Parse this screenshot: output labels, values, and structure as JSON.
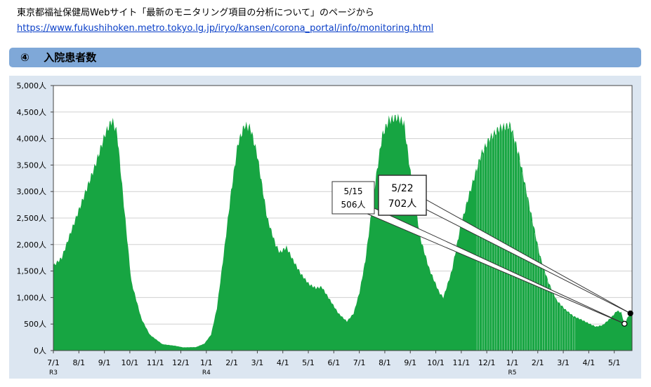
{
  "header": {
    "caption": "東京都福祉保健局Webサイト「最新のモニタリング項目の分析について」のページから",
    "url": "https://www.fukushihoken.metro.tokyo.lg.jp/iryo/kansen/corona_portal/info/monitoring.html"
  },
  "section": {
    "number": "④",
    "title": "入院患者数"
  },
  "colors": {
    "bar": "#17a542",
    "section_bar": "#7fa8d8",
    "panel": "#dce6f1"
  },
  "chart_data": {
    "type": "area",
    "x_labels": [
      "7/1",
      "8/1",
      "9/1",
      "10/1",
      "11/1",
      "12/1",
      "1/1",
      "2/1",
      "3/1",
      "4/1",
      "5/1",
      "6/1",
      "7/1",
      "8/1",
      "9/1",
      "10/1",
      "11/1",
      "12/1",
      "1/1",
      "2/1",
      "3/1",
      "4/1",
      "5/1"
    ],
    "year_labels": [
      {
        "label": "R3",
        "at": "7/1"
      },
      {
        "label": "R4",
        "at": "1/1"
      },
      {
        "label": "R5",
        "at": "1/1"
      }
    ],
    "y_ticks": [
      "0人",
      "500人",
      "1,000人",
      "1,500人",
      "2,000人",
      "2,500人",
      "3,000人",
      "3,500人",
      "4,000人",
      "4,500人",
      "5,000人"
    ],
    "ylim": [
      0,
      5000
    ],
    "x_range_days": [
      0,
      690
    ],
    "key_points": [
      [
        0,
        1600
      ],
      [
        10,
        1750
      ],
      [
        20,
        2200
      ],
      [
        35,
        2850
      ],
      [
        50,
        3500
      ],
      [
        62,
        4100
      ],
      [
        70,
        4350
      ],
      [
        76,
        4100
      ],
      [
        85,
        2600
      ],
      [
        93,
        1300
      ],
      [
        105,
        600
      ],
      [
        115,
        300
      ],
      [
        130,
        120
      ],
      [
        145,
        90
      ],
      [
        155,
        60
      ],
      [
        170,
        65
      ],
      [
        180,
        130
      ],
      [
        188,
        300
      ],
      [
        195,
        800
      ],
      [
        203,
        1800
      ],
      [
        212,
        3000
      ],
      [
        220,
        3900
      ],
      [
        228,
        4250
      ],
      [
        235,
        4200
      ],
      [
        243,
        3700
      ],
      [
        255,
        2500
      ],
      [
        265,
        2000
      ],
      [
        270,
        1850
      ],
      [
        278,
        1950
      ],
      [
        286,
        1700
      ],
      [
        295,
        1450
      ],
      [
        305,
        1250
      ],
      [
        313,
        1180
      ],
      [
        320,
        1200
      ],
      [
        330,
        950
      ],
      [
        340,
        700
      ],
      [
        350,
        550
      ],
      [
        358,
        700
      ],
      [
        365,
        1100
      ],
      [
        372,
        1700
      ],
      [
        380,
        2700
      ],
      [
        385,
        3300
      ],
      [
        392,
        4050
      ],
      [
        400,
        4350
      ],
      [
        410,
        4400
      ],
      [
        418,
        4300
      ],
      [
        428,
        3100
      ],
      [
        438,
        2100
      ],
      [
        448,
        1550
      ],
      [
        460,
        1100
      ],
      [
        465,
        1000
      ],
      [
        475,
        1500
      ],
      [
        485,
        2300
      ],
      [
        495,
        2900
      ],
      [
        510,
        3700
      ],
      [
        520,
        4000
      ],
      [
        532,
        4200
      ],
      [
        545,
        4250
      ],
      [
        555,
        3700
      ],
      [
        568,
        2700
      ],
      [
        580,
        1800
      ],
      [
        590,
        1300
      ],
      [
        600,
        950
      ],
      [
        610,
        780
      ],
      [
        620,
        650
      ],
      [
        630,
        580
      ],
      [
        640,
        500
      ],
      [
        647,
        450
      ],
      [
        655,
        480
      ],
      [
        665,
        620
      ],
      [
        672,
        750
      ],
      [
        677,
        720
      ],
      [
        681,
        506
      ],
      [
        684,
        600
      ],
      [
        688,
        702
      ],
      [
        690,
        702
      ]
    ],
    "annotations": [
      {
        "date": "5/15",
        "value_label": "506人",
        "value": 506
      },
      {
        "date": "5/22",
        "value_label": "702人",
        "value": 702
      }
    ]
  }
}
